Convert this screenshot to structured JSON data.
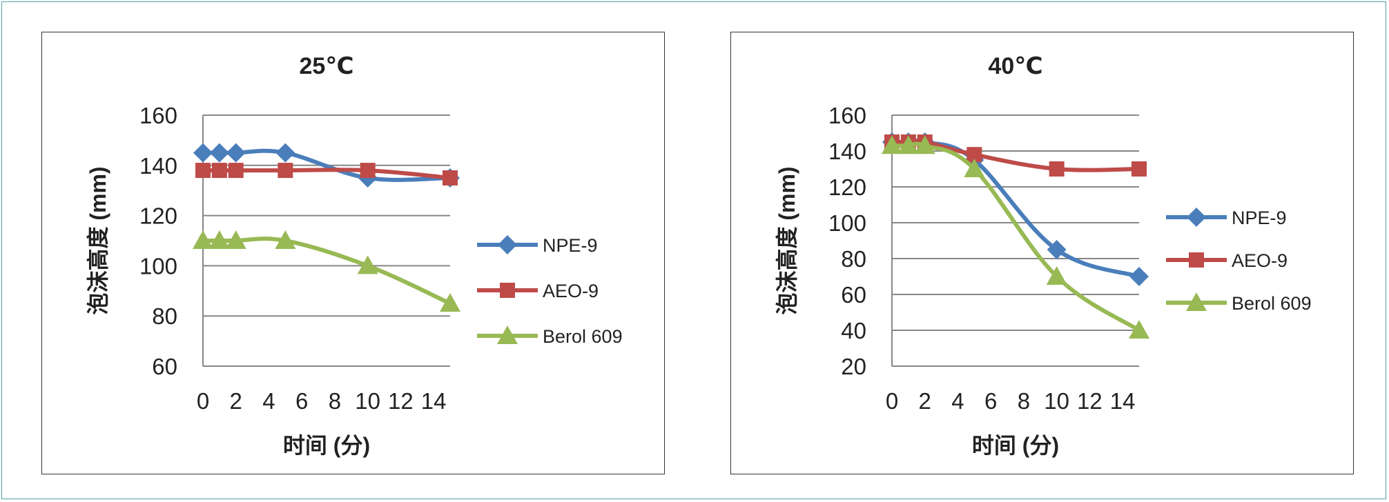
{
  "colors": {
    "NPE-9": "#4a7ebb",
    "AEO-9": "#be4b48",
    "Berol 609": "#98b954",
    "grid": "#868686"
  },
  "chart_data": [
    {
      "type": "line",
      "title": "25℃",
      "xlabel": "时间 (分)",
      "ylabel": "泡沫高度 (mm)",
      "xlim": [
        0,
        15
      ],
      "xticks": [
        0,
        2,
        4,
        6,
        8,
        10,
        12,
        14
      ],
      "ylim": [
        60,
        160
      ],
      "yticks": [
        60,
        80,
        100,
        120,
        140,
        160
      ],
      "legend_position": "right",
      "grid": true,
      "series": [
        {
          "name": "NPE-9",
          "marker": "diamond",
          "x": [
            0,
            1,
            2,
            5,
            10,
            15
          ],
          "y": [
            145,
            145,
            145,
            145,
            135,
            135
          ]
        },
        {
          "name": "AEO-9",
          "marker": "square",
          "x": [
            0,
            1,
            2,
            5,
            10,
            15
          ],
          "y": [
            138,
            138,
            138,
            138,
            138,
            135
          ]
        },
        {
          "name": "Berol 609",
          "marker": "triangle",
          "x": [
            0,
            1,
            2,
            5,
            10,
            15
          ],
          "y": [
            110,
            110,
            110,
            110,
            100,
            85
          ]
        }
      ]
    },
    {
      "type": "line",
      "title": "40℃",
      "xlabel": "时间 (分)",
      "ylabel": "泡沫高度 (mm)",
      "xlim": [
        0,
        15
      ],
      "xticks": [
        0,
        2,
        4,
        6,
        8,
        10,
        12,
        14
      ],
      "ylim": [
        20,
        160
      ],
      "yticks": [
        20,
        40,
        60,
        80,
        100,
        120,
        140,
        160
      ],
      "legend_position": "right",
      "grid": true,
      "series": [
        {
          "name": "NPE-9",
          "marker": "diamond",
          "x": [
            0,
            1,
            2,
            5,
            10,
            15
          ],
          "y": [
            145,
            145,
            145,
            135,
            85,
            70
          ]
        },
        {
          "name": "AEO-9",
          "marker": "square",
          "x": [
            0,
            1,
            2,
            5,
            10,
            15
          ],
          "y": [
            145,
            145,
            145,
            138,
            130,
            130
          ]
        },
        {
          "name": "Berol 609",
          "marker": "triangle",
          "x": [
            0,
            1,
            2,
            5,
            10,
            15
          ],
          "y": [
            143,
            143,
            143,
            130,
            70,
            40
          ]
        }
      ]
    }
  ]
}
